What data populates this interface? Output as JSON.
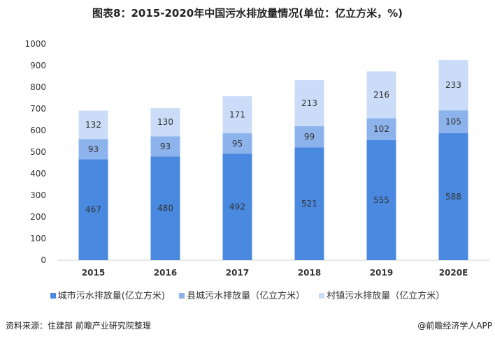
{
  "title": "图表8：2015-2020年中国污水排放量情况(单位：亿立方米，%)",
  "source": "资料来源：住建部 前瞻产业研究院整理",
  "credit": "@前瞻经济学人APP",
  "chart_data": {
    "type": "bar",
    "stacked": true,
    "title": "图表8：2015-2020年中国污水排放量情况(单位：亿立方米，%)",
    "categories": [
      "2015",
      "2016",
      "2017",
      "2018",
      "2019",
      "2020E"
    ],
    "ylim": [
      0,
      1000
    ],
    "yticks": [
      0,
      100,
      200,
      300,
      400,
      500,
      600,
      700,
      800,
      900,
      1000
    ],
    "grid": false,
    "legend": "bottom",
    "series": [
      {
        "name": "城市污水排放量(亿立方米)",
        "values": [
          467,
          480,
          492,
          521,
          555,
          588
        ],
        "color": "#4a89e0"
      },
      {
        "name": "县城污水排放量（亿立方米）",
        "values": [
          93,
          93,
          95,
          99,
          102,
          105
        ],
        "color": "#8db3ec"
      },
      {
        "name": "村镇污水排放量（亿立方米）",
        "values": [
          132,
          130,
          171,
          213,
          216,
          233
        ],
        "color": "#cadcf7"
      }
    ]
  }
}
